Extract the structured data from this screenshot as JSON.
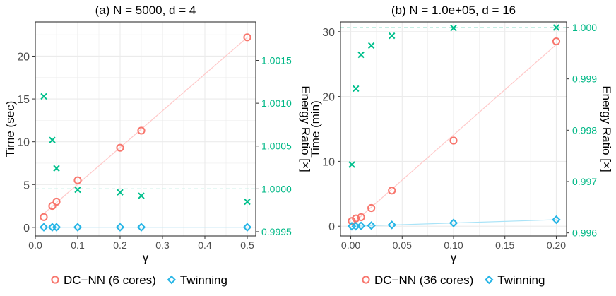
{
  "colors": {
    "dcnn": "#F8766D",
    "dcnn_fit": "#FFC9C9",
    "twinning": "#26B5E6",
    "twinning_fit": "#A9E3F7",
    "energy": "#00BF8C",
    "ref_line": "#A0E3D3",
    "panel_border": "#333333",
    "grid": "#EBEBEB"
  },
  "legend": [
    {
      "panel": 0,
      "items": [
        {
          "label": "DC−NN (6 cores)",
          "marker": "circle",
          "color_key": "dcnn"
        },
        {
          "label": "Twinning",
          "marker": "diamond",
          "color_key": "twinning"
        }
      ]
    },
    {
      "panel": 1,
      "items": [
        {
          "label": "DC−NN (36 cores)",
          "marker": "circle",
          "color_key": "dcnn"
        },
        {
          "label": "Twinning",
          "marker": "diamond",
          "color_key": "twinning"
        }
      ]
    }
  ],
  "chart_data": [
    {
      "type": "scatter",
      "title": "(a) N = 5000, d = 4",
      "xlabel": "γ",
      "ylabel": "Time (sec)",
      "y2label": "Energy Ratio [×]",
      "xlim": [
        0,
        0.52
      ],
      "ylim": [
        -1,
        24
      ],
      "y2lim": [
        0.99945,
        1.00195
      ],
      "xticks": [
        "0.0",
        "0.1",
        "0.2",
        "0.3",
        "0.4",
        "0.5"
      ],
      "yticks": [
        "0",
        "5",
        "10",
        "15",
        "20"
      ],
      "y2ticks": [
        "0.9995",
        "1.0000",
        "1.0005",
        "1.0010",
        "1.0015"
      ],
      "grid": true,
      "reference_y2": 1.0,
      "series": [
        {
          "name": "DC−NN (6 cores)",
          "marker": "circle",
          "color_key": "dcnn",
          "axis": "left",
          "fit_line": true,
          "x": [
            0.02,
            0.04,
            0.05,
            0.1,
            0.2,
            0.25,
            0.5
          ],
          "y": [
            1.2,
            2.5,
            3.0,
            5.5,
            9.3,
            11.3,
            22.2
          ]
        },
        {
          "name": "Twinning",
          "marker": "diamond",
          "color_key": "twinning",
          "axis": "left",
          "fit_line": true,
          "x": [
            0.02,
            0.04,
            0.05,
            0.1,
            0.2,
            0.25,
            0.5
          ],
          "y": [
            0.02,
            0.02,
            0.02,
            0.02,
            0.02,
            0.02,
            0.02
          ]
        },
        {
          "marker": "cross",
          "color_key": "energy",
          "axis": "right",
          "fit_line": false,
          "x": [
            0.02,
            0.04,
            0.05,
            0.1,
            0.2,
            0.25,
            0.5
          ],
          "y": [
            1.00108,
            1.00057,
            1.00024,
            0.99999,
            0.99996,
            0.99992,
            0.99985
          ]
        }
      ]
    },
    {
      "type": "scatter",
      "title": "(b) N = 1.0e+05, d = 16",
      "xlabel": "γ",
      "ylabel": "Time (min)",
      "y2label": "Energy Ratio [×]",
      "xlim": [
        -0.01,
        0.21
      ],
      "ylim": [
        -1.5,
        31.5
      ],
      "y2lim": [
        0.99594,
        1.00011
      ],
      "xticks": [
        "0.00",
        "0.05",
        "0.10",
        "0.15",
        "0.20"
      ],
      "yticks": [
        "0",
        "10",
        "20",
        "30"
      ],
      "y2ticks": [
        "0.996",
        "0.997",
        "0.998",
        "0.999",
        "1.000"
      ],
      "grid": true,
      "reference_y2": 1.0,
      "series": [
        {
          "name": "DC−NN (36 cores)",
          "marker": "circle",
          "color_key": "dcnn",
          "axis": "left",
          "fit_line": true,
          "x": [
            0.001,
            0.005,
            0.01,
            0.02,
            0.04,
            0.1,
            0.2
          ],
          "y": [
            0.8,
            1.2,
            1.4,
            2.8,
            5.5,
            13.2,
            28.5
          ]
        },
        {
          "name": "Twinning",
          "marker": "diamond",
          "color_key": "twinning",
          "axis": "left",
          "fit_line": true,
          "x": [
            0.001,
            0.005,
            0.01,
            0.02,
            0.04,
            0.1,
            0.2
          ],
          "y": [
            0.0,
            0.0,
            0.05,
            0.1,
            0.2,
            0.5,
            1.0
          ]
        },
        {
          "marker": "cross",
          "color_key": "energy",
          "axis": "right",
          "fit_line": false,
          "x": [
            0.001,
            0.005,
            0.01,
            0.02,
            0.04,
            0.1,
            0.2
          ],
          "y": [
            0.99733,
            0.99881,
            0.99947,
            0.99965,
            0.99984,
            0.99999,
            1.0
          ]
        }
      ]
    }
  ]
}
